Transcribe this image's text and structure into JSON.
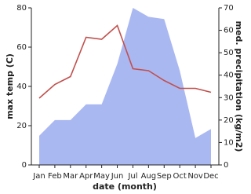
{
  "chart_data": {
    "type": "line_area_dual",
    "x_label": "date (month)",
    "y_label": "max temp (C)",
    "y2_label": "med. precipitation (kg/m2)",
    "categories": [
      "Jan",
      "Feb",
      "Mar",
      "Apr",
      "May",
      "Jun",
      "Jul",
      "Aug",
      "Sep",
      "Oct",
      "Nov",
      "Dec"
    ],
    "series": [
      {
        "name": "max temp",
        "type": "line",
        "color": "#c0504d",
        "values": [
          34,
          41,
          45,
          65,
          64,
          71,
          49,
          48,
          43,
          39,
          39,
          37
        ]
      },
      {
        "name": "med. precipitation",
        "type": "area",
        "axis": "y2",
        "color": "#aab8f2",
        "values": [
          13,
          20,
          20,
          27,
          27,
          45,
          70,
          66,
          65,
          42,
          12,
          16
        ]
      }
    ],
    "ylim": [
      0,
      80
    ],
    "yticks": [
      0,
      20,
      40,
      60,
      80
    ],
    "y2lim": [
      0,
      70
    ],
    "y2ticks": [
      0,
      10,
      20,
      30,
      40,
      50,
      60,
      70
    ]
  }
}
